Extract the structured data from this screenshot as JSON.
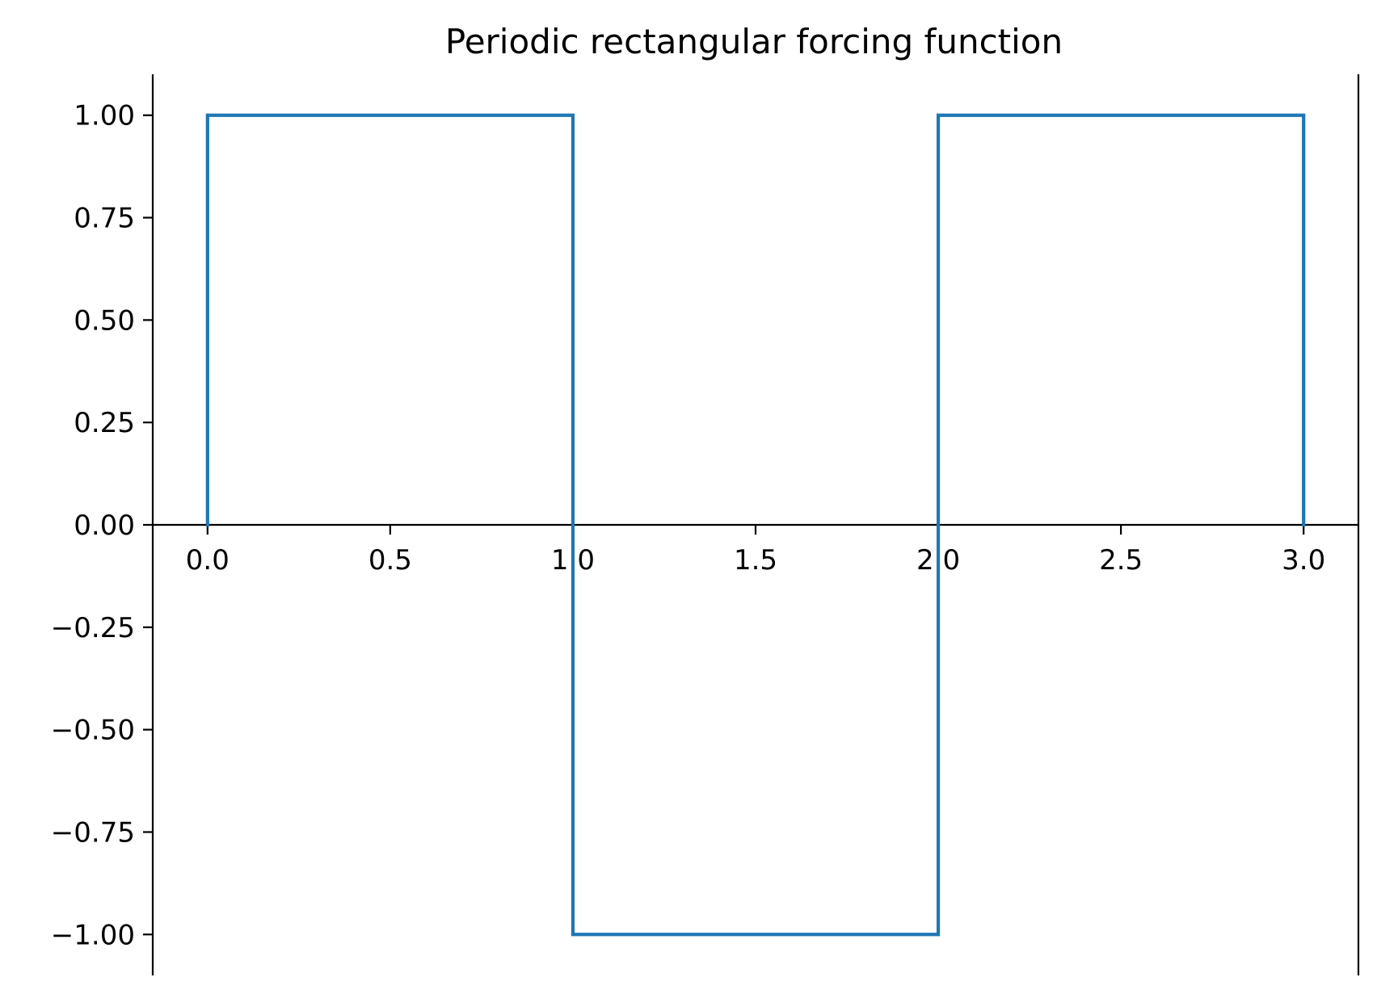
{
  "chart_data": {
    "type": "line",
    "title": "Periodic rectangular forcing function",
    "xlabel": "",
    "ylabel": "",
    "xlim": [
      -0.15,
      3.15
    ],
    "ylim": [
      -1.1,
      1.1
    ],
    "xticks": [
      0.0,
      0.5,
      1.0,
      1.5,
      2.0,
      2.5,
      3.0
    ],
    "xtick_labels": [
      "0.0",
      "0.5",
      "1.0",
      "1.5",
      "2.0",
      "2.5",
      "3.0"
    ],
    "yticks": [
      1.0,
      0.75,
      0.5,
      0.25,
      0.0,
      -0.25,
      -0.5,
      -0.75,
      -1.0
    ],
    "ytick_labels": [
      "1.00",
      "0.75",
      "0.50",
      "0.25",
      "0.00",
      "−0.25",
      "−0.50",
      "−0.75",
      "−1.00"
    ],
    "grid": false,
    "spines": "left and right at plot edges, bottom axis through y = 0",
    "series": [
      {
        "color": "#1f77b4",
        "x": [
          0.0,
          0.0,
          1.0,
          1.0,
          2.0,
          2.0,
          3.0,
          3.0
        ],
        "y": [
          0.0,
          1.0,
          1.0,
          -1.0,
          -1.0,
          1.0,
          1.0,
          0.0
        ]
      }
    ]
  }
}
